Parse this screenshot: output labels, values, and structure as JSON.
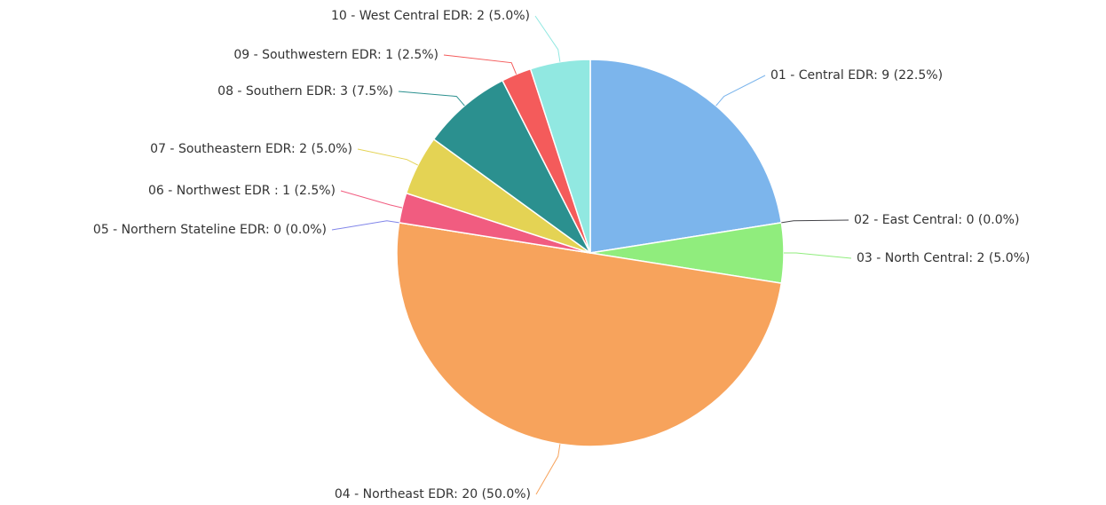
{
  "chart_data": {
    "type": "pie",
    "categories": [
      "01 - Central EDR: 9 (22.5%)",
      "02 - East Central: 0 (0.0%)",
      "03 - North Central: 2 (5.0%)",
      "04 - Northeast EDR: 20 (50.0%)",
      "05 - Northern Stateline EDR: 0 (0.0%)",
      "06 - Northwest EDR : 1 (2.5%)",
      "07 - Southeastern EDR: 2 (5.0%)",
      "08 - Southern EDR: 3 (7.5%)",
      "09 - Southwestern EDR: 1 (2.5%)",
      "10 - West Central EDR: 2 (5.0%)"
    ],
    "values": [
      9,
      0,
      2,
      20,
      0,
      1,
      2,
      3,
      1,
      2
    ],
    "colors": [
      "#7cb5ec",
      "#434348",
      "#90ed7d",
      "#f7a35c",
      "#8085e9",
      "#f15c80",
      "#e4d354",
      "#2b908f",
      "#f45b5b",
      "#91e8e1"
    ]
  }
}
